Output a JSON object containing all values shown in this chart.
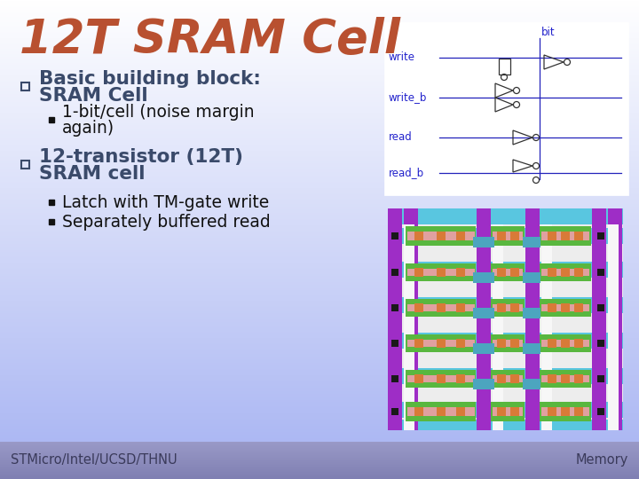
{
  "title": "12T SRAM Cell",
  "title_color": "#b85030",
  "bullet1_line1": "Basic building block:",
  "bullet1_line2": "SRAM Cell",
  "sub1_line1": "1-bit/cell (noise margin",
  "sub1_line2": "again)",
  "bullet2_line1": "12-transistor (12T)",
  "bullet2_line2": "SRAM cell",
  "sub2_line1": "Latch with TM-gate write",
  "sub2_line2": "Separately buffered read",
  "footer_left": "STMicro/Intel/UCSD/THNU",
  "footer_right": "Memory",
  "footer_text_color": "#555577",
  "bg_top_color": "#ffffff",
  "bg_bottom_color": "#9090c0",
  "text_color": "#3a4a6a",
  "sub_text_color": "#111111",
  "circuit_label_color": "#2222cc",
  "circuit_line_color": "#2222bb",
  "circuit_symbol_color": "#333333"
}
